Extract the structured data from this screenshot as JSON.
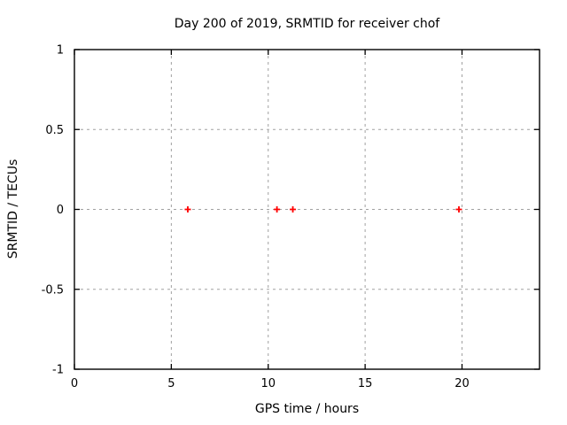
{
  "chart_data": {
    "type": "scatter",
    "title": "Day 200 of 2019, SRMTID for receiver chof",
    "xlabel": "GPS time / hours",
    "ylabel": "SRMTID / TECUs",
    "xlim": [
      0,
      24
    ],
    "ylim": [
      -1,
      1
    ],
    "xticks": [
      0,
      5,
      10,
      15,
      20
    ],
    "yticks": [
      -1,
      -0.5,
      0,
      0.5,
      1
    ],
    "grid": true,
    "legend": "none",
    "series": [
      {
        "name": "SRMTID",
        "marker": "plus",
        "color": "#ff0000",
        "x": [
          5.85,
          10.45,
          11.27,
          19.84
        ],
        "y": [
          0,
          0,
          0,
          0
        ]
      }
    ]
  },
  "colors": {
    "background": "#ffffff",
    "axis": "#000000",
    "grid": "#a0a0a0",
    "marker": "#ff0000"
  }
}
